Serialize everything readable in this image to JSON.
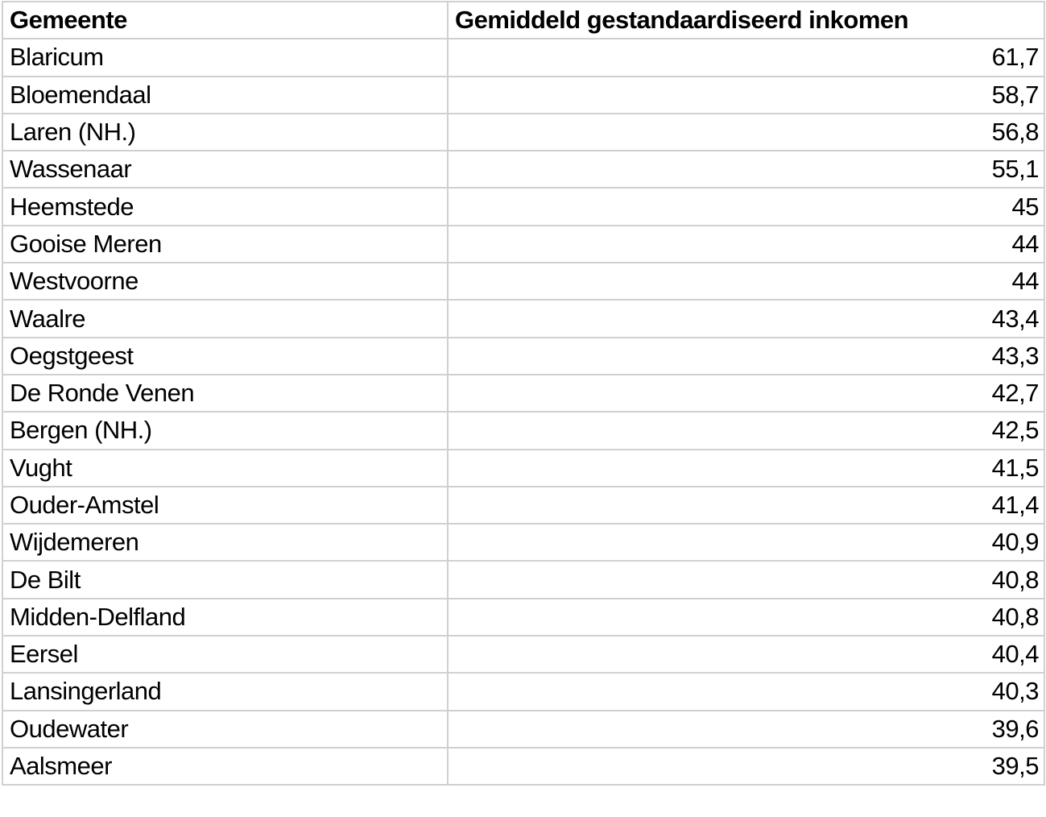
{
  "headers": {
    "gemeente": "Gemeente",
    "inkomen": "Gemiddeld gestandaardiseerd inkomen"
  },
  "rows": [
    {
      "gemeente": "Blaricum",
      "inkomen": "61,7"
    },
    {
      "gemeente": "Bloemendaal",
      "inkomen": "58,7"
    },
    {
      "gemeente": "Laren (NH.)",
      "inkomen": "56,8"
    },
    {
      "gemeente": "Wassenaar",
      "inkomen": "55,1"
    },
    {
      "gemeente": "Heemstede",
      "inkomen": "45"
    },
    {
      "gemeente": "Gooise Meren",
      "inkomen": "44"
    },
    {
      "gemeente": "Westvoorne",
      "inkomen": "44"
    },
    {
      "gemeente": "Waalre",
      "inkomen": "43,4"
    },
    {
      "gemeente": "Oegstgeest",
      "inkomen": "43,3"
    },
    {
      "gemeente": "De Ronde Venen",
      "inkomen": "42,7"
    },
    {
      "gemeente": "Bergen (NH.)",
      "inkomen": "42,5"
    },
    {
      "gemeente": "Vught",
      "inkomen": "41,5"
    },
    {
      "gemeente": "Ouder-Amstel",
      "inkomen": "41,4"
    },
    {
      "gemeente": "Wijdemeren",
      "inkomen": "40,9"
    },
    {
      "gemeente": "De Bilt",
      "inkomen": "40,8"
    },
    {
      "gemeente": "Midden-Delfland",
      "inkomen": "40,8"
    },
    {
      "gemeente": "Eersel",
      "inkomen": "40,4"
    },
    {
      "gemeente": "Lansingerland",
      "inkomen": "40,3"
    },
    {
      "gemeente": "Oudewater",
      "inkomen": "39,6"
    },
    {
      "gemeente": "Aalsmeer",
      "inkomen": "39,5"
    }
  ]
}
